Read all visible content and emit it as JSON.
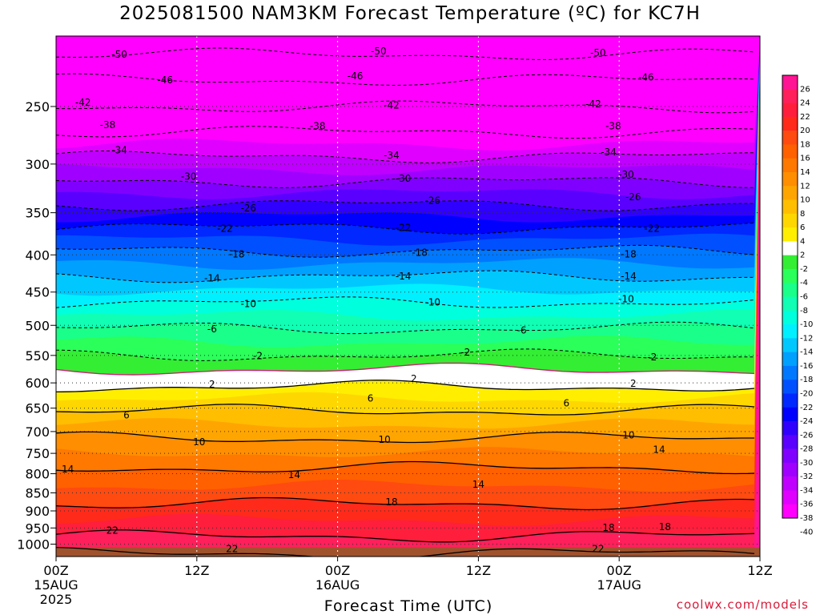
{
  "title": "2025081500 NAM3KM Forecast Temperature (ºC) for KC7H",
  "credit": "coolwx.com/models",
  "chart_data": {
    "type": "heatmap",
    "title": "2025081500 NAM3KM Forecast Temperature (ºC) for KC7H",
    "xlabel": "Forecast Time (UTC)",
    "ylabel": "",
    "x_range_hours": [
      0,
      60
    ],
    "y_range_hpa": [
      1040,
      200
    ],
    "y_scale": "log",
    "grid": true,
    "x_ticks": [
      {
        "hour": 0,
        "label": "00Z",
        "sub1": "15AUG",
        "sub2": "2025"
      },
      {
        "hour": 12,
        "label": "12Z",
        "sub1": "",
        "sub2": ""
      },
      {
        "hour": 24,
        "label": "00Z",
        "sub1": "16AUG",
        "sub2": ""
      },
      {
        "hour": 36,
        "label": "12Z",
        "sub1": "",
        "sub2": ""
      },
      {
        "hour": 48,
        "label": "00Z",
        "sub1": "17AUG",
        "sub2": ""
      },
      {
        "hour": 60,
        "label": "12Z",
        "sub1": "",
        "sub2": ""
      }
    ],
    "y_ticks": [
      250,
      300,
      350,
      400,
      450,
      500,
      550,
      600,
      650,
      700,
      750,
      800,
      850,
      900,
      950,
      1000
    ],
    "ground_pressure_hpa": 1010,
    "colorbar": {
      "values": [
        26,
        24,
        22,
        20,
        18,
        16,
        14,
        12,
        10,
        8,
        6,
        4,
        2,
        -2,
        -4,
        -6,
        -8,
        -10,
        -12,
        -14,
        -16,
        -18,
        -20,
        -22,
        -24,
        -26,
        -28,
        -30,
        -32,
        -34,
        -36,
        -38,
        -40
      ],
      "colors": [
        "#ff1493",
        "#ff1f5a",
        "#ff1e3c",
        "#ff2a1a",
        "#ff4a10",
        "#ff6000",
        "#ff7800",
        "#ff8e00",
        "#ffa500",
        "#ffbe00",
        "#ffd700",
        "#ffee00",
        "#ffffff",
        "#33ee33",
        "#2aff5a",
        "#1aff8a",
        "#10ffb4",
        "#00ffdc",
        "#00f0ff",
        "#00c8ff",
        "#00a0ff",
        "#0078ff",
        "#0050ff",
        "#0028ff",
        "#0000ff",
        "#3000ff",
        "#5a00ff",
        "#8000ff",
        "#a000ff",
        "#c000ff",
        "#e000ff",
        "#ff00ff"
      ]
    },
    "isotherm_profile": [
      {
        "temp_c": 24,
        "pressure_hpa": 1030
      },
      {
        "temp_c": 22,
        "pressure_hpa": 975
      },
      {
        "temp_c": 18,
        "pressure_hpa": 880
      },
      {
        "temp_c": 14,
        "pressure_hpa": 785
      },
      {
        "temp_c": 10,
        "pressure_hpa": 715
      },
      {
        "temp_c": 6,
        "pressure_hpa": 655
      },
      {
        "temp_c": 2,
        "pressure_hpa": 607
      },
      {
        "temp_c": 0,
        "pressure_hpa": 575
      },
      {
        "temp_c": -2,
        "pressure_hpa": 550
      },
      {
        "temp_c": -6,
        "pressure_hpa": 505
      },
      {
        "temp_c": -10,
        "pressure_hpa": 465
      },
      {
        "temp_c": -14,
        "pressure_hpa": 428
      },
      {
        "temp_c": -18,
        "pressure_hpa": 395
      },
      {
        "temp_c": -22,
        "pressure_hpa": 367
      },
      {
        "temp_c": -26,
        "pressure_hpa": 341
      },
      {
        "temp_c": -30,
        "pressure_hpa": 317
      },
      {
        "temp_c": -34,
        "pressure_hpa": 293
      },
      {
        "temp_c": -38,
        "pressure_hpa": 271
      },
      {
        "temp_c": -42,
        "pressure_hpa": 250
      },
      {
        "temp_c": -46,
        "pressure_hpa": 230
      },
      {
        "temp_c": -50,
        "pressure_hpa": 212
      }
    ],
    "contour_labels": [
      {
        "text": "-50",
        "hour": 5.4,
        "pressure_hpa": 212
      },
      {
        "text": "-50",
        "hour": 27.5,
        "pressure_hpa": 210
      },
      {
        "text": "-50",
        "hour": 46.2,
        "pressure_hpa": 211
      },
      {
        "text": "-46",
        "hour": 9.3,
        "pressure_hpa": 230
      },
      {
        "text": "-46",
        "hour": 25.5,
        "pressure_hpa": 227
      },
      {
        "text": "-46",
        "hour": 50.3,
        "pressure_hpa": 228
      },
      {
        "text": "-42",
        "hour": 2.3,
        "pressure_hpa": 247
      },
      {
        "text": "-42",
        "hour": 28.6,
        "pressure_hpa": 249
      },
      {
        "text": "-42",
        "hour": 45.8,
        "pressure_hpa": 248
      },
      {
        "text": "-38",
        "hour": 4.4,
        "pressure_hpa": 265
      },
      {
        "text": "-38",
        "hour": 22.3,
        "pressure_hpa": 266
      },
      {
        "text": "-38",
        "hour": 47.5,
        "pressure_hpa": 266
      },
      {
        "text": "-34",
        "hour": 5.4,
        "pressure_hpa": 287
      },
      {
        "text": "-34",
        "hour": 28.6,
        "pressure_hpa": 292
      },
      {
        "text": "-34",
        "hour": 47.1,
        "pressure_hpa": 289
      },
      {
        "text": "-30",
        "hour": 11.3,
        "pressure_hpa": 312
      },
      {
        "text": "-30",
        "hour": 29.6,
        "pressure_hpa": 314
      },
      {
        "text": "-30",
        "hour": 48.6,
        "pressure_hpa": 310
      },
      {
        "text": "-26",
        "hour": 16.4,
        "pressure_hpa": 345
      },
      {
        "text": "-26",
        "hour": 32.1,
        "pressure_hpa": 337
      },
      {
        "text": "-26",
        "hour": 49.2,
        "pressure_hpa": 333
      },
      {
        "text": "-22",
        "hour": 14.4,
        "pressure_hpa": 368
      },
      {
        "text": "-22",
        "hour": 29.6,
        "pressure_hpa": 367
      },
      {
        "text": "-22",
        "hour": 50.8,
        "pressure_hpa": 368
      },
      {
        "text": "-18",
        "hour": 15.4,
        "pressure_hpa": 399
      },
      {
        "text": "-18",
        "hour": 31.0,
        "pressure_hpa": 397
      },
      {
        "text": "-18",
        "hour": 48.8,
        "pressure_hpa": 399
      },
      {
        "text": "-14",
        "hour": 13.3,
        "pressure_hpa": 431
      },
      {
        "text": "-14",
        "hour": 29.6,
        "pressure_hpa": 428
      },
      {
        "text": "-14",
        "hour": 48.8,
        "pressure_hpa": 428
      },
      {
        "text": "-10",
        "hour": 16.4,
        "pressure_hpa": 467
      },
      {
        "text": "-10",
        "hour": 32.1,
        "pressure_hpa": 465
      },
      {
        "text": "-10",
        "hour": 48.6,
        "pressure_hpa": 460
      },
      {
        "text": "-6",
        "hour": 13.3,
        "pressure_hpa": 506
      },
      {
        "text": "-6",
        "hour": 39.7,
        "pressure_hpa": 508
      },
      {
        "text": "-2",
        "hour": 17.2,
        "pressure_hpa": 551
      },
      {
        "text": "-2",
        "hour": 34.9,
        "pressure_hpa": 545
      },
      {
        "text": "-2",
        "hour": 50.8,
        "pressure_hpa": 553
      },
      {
        "text": "2",
        "hour": 13.3,
        "pressure_hpa": 603
      },
      {
        "text": "2",
        "hour": 30.5,
        "pressure_hpa": 592
      },
      {
        "text": "2",
        "hour": 49.2,
        "pressure_hpa": 601
      },
      {
        "text": "6",
        "hour": 6.0,
        "pressure_hpa": 665
      },
      {
        "text": "6",
        "hour": 26.8,
        "pressure_hpa": 630
      },
      {
        "text": "6",
        "hour": 43.5,
        "pressure_hpa": 640
      },
      {
        "text": "10",
        "hour": 12.2,
        "pressure_hpa": 724
      },
      {
        "text": "10",
        "hour": 28.0,
        "pressure_hpa": 718
      },
      {
        "text": "10",
        "hour": 48.8,
        "pressure_hpa": 708
      },
      {
        "text": "14",
        "hour": 1.0,
        "pressure_hpa": 789
      },
      {
        "text": "14",
        "hour": 20.3,
        "pressure_hpa": 803
      },
      {
        "text": "14",
        "hour": 36.0,
        "pressure_hpa": 828
      },
      {
        "text": "14",
        "hour": 51.4,
        "pressure_hpa": 741
      },
      {
        "text": "18",
        "hour": 28.6,
        "pressure_hpa": 875
      },
      {
        "text": "18",
        "hour": 47.1,
        "pressure_hpa": 949
      },
      {
        "text": "18",
        "hour": 51.9,
        "pressure_hpa": 947
      },
      {
        "text": "22",
        "hour": 4.8,
        "pressure_hpa": 958
      },
      {
        "text": "22",
        "hour": 15.0,
        "pressure_hpa": 1015
      },
      {
        "text": "22",
        "hour": 46.2,
        "pressure_hpa": 1015
      }
    ]
  }
}
